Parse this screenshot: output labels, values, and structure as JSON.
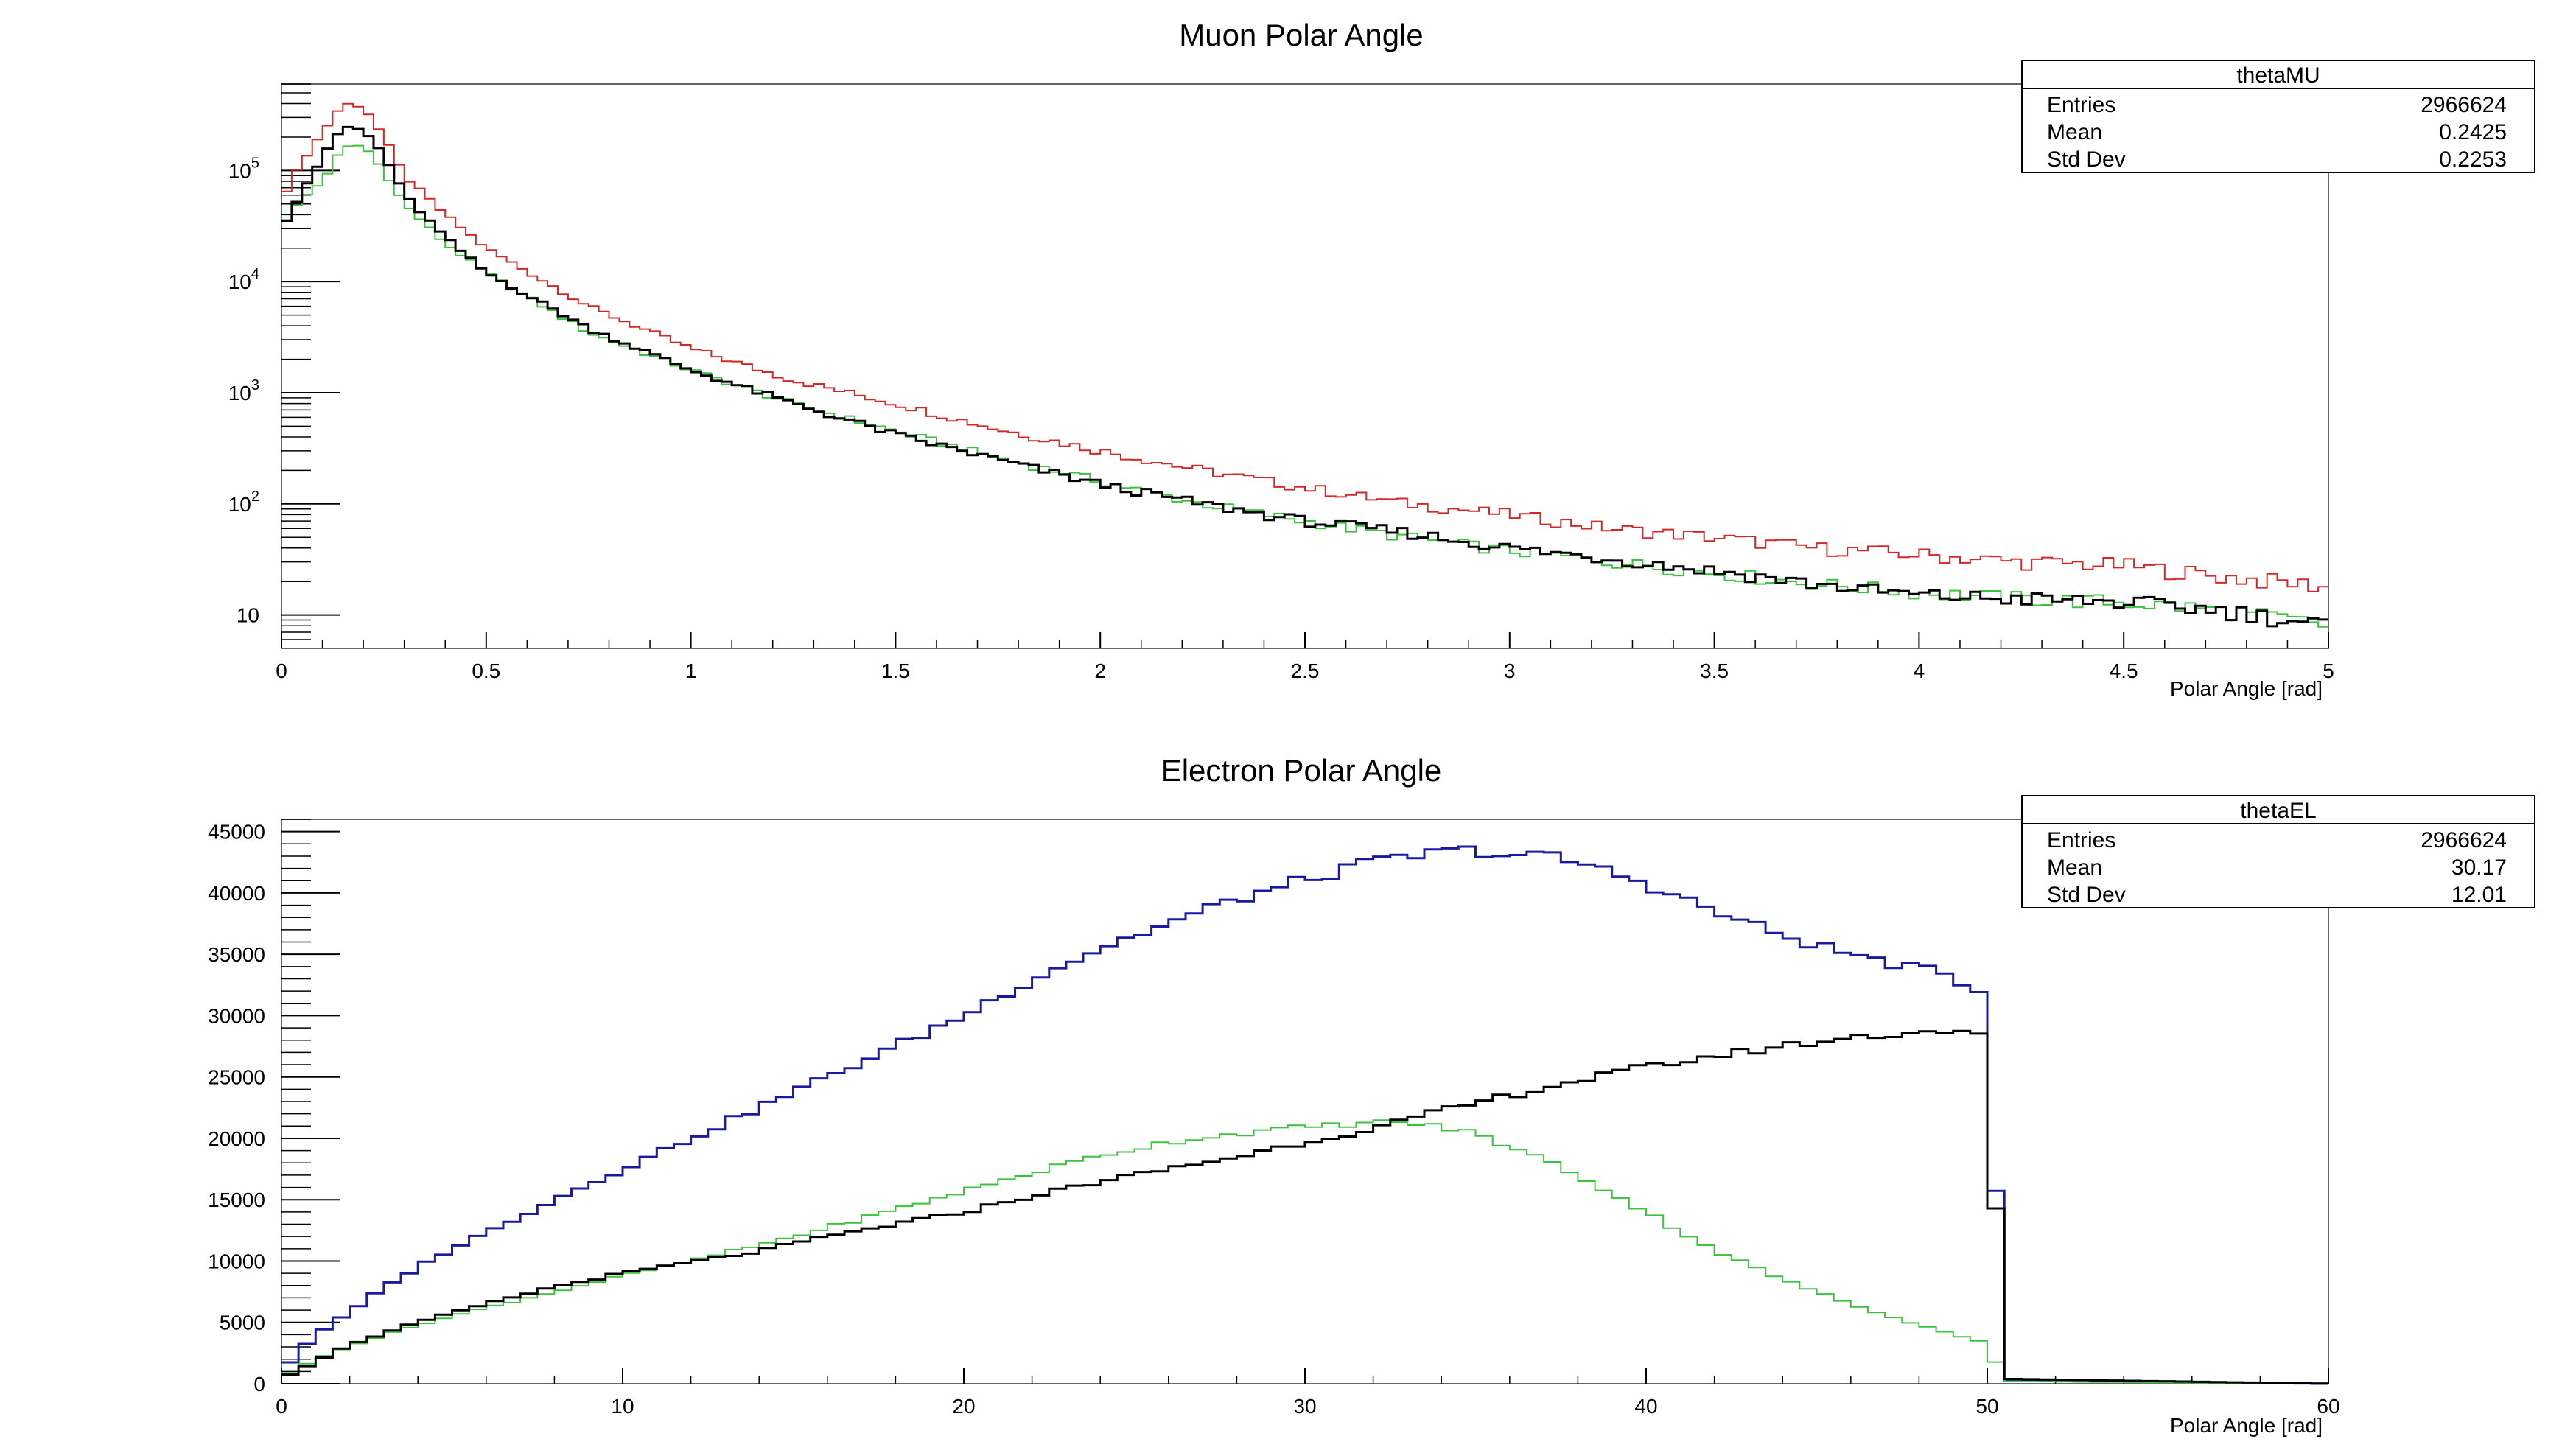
{
  "chart_data": [
    {
      "type": "histogram",
      "title": "Muon Polar Angle",
      "xlabel": "Polar Angle [rad]",
      "ylabel": "",
      "xlim": [
        0,
        5
      ],
      "ylim": [
        5,
        600000
      ],
      "yscale": "log",
      "xticks": [
        "0",
        "0.5",
        "1",
        "1.5",
        "2",
        "2.5",
        "3",
        "3.5",
        "4",
        "4.5",
        "5"
      ],
      "yticks": [
        {
          "base": "10",
          "exp": "5",
          "value": 100000
        },
        {
          "base": "10",
          "exp": "4",
          "value": 10000
        },
        {
          "base": "10",
          "exp": "3",
          "value": 1000
        },
        {
          "base": "10",
          "exp": "2",
          "value": 100
        },
        {
          "base": "10",
          "exp": "",
          "value": 10
        }
      ],
      "grid": false,
      "stats_box": {
        "name": "thetaMU",
        "rows": [
          {
            "label": "Entries",
            "value": "2966624"
          },
          {
            "label": "Mean",
            "value": "0.2425"
          },
          {
            "label": "Std Dev",
            "value": "0.2253"
          }
        ]
      },
      "bin_edges": [
        0,
        5
      ],
      "nbins": 200,
      "series": [
        {
          "color": "#d62728",
          "line_width": 2,
          "anchors": [
            [
              0.0,
              55000
            ],
            [
              0.05,
              120000
            ],
            [
              0.1,
              220000
            ],
            [
              0.15,
              400000
            ],
            [
              0.2,
              380000
            ],
            [
              0.25,
              200000
            ],
            [
              0.3,
              90000
            ],
            [
              0.4,
              40000
            ],
            [
              0.5,
              20000
            ],
            [
              0.75,
              6000
            ],
            [
              1.0,
              2500
            ],
            [
              1.25,
              1300
            ],
            [
              1.5,
              800
            ],
            [
              1.75,
              470
            ],
            [
              2.0,
              300
            ],
            [
              2.25,
              200
            ],
            [
              2.5,
              140
            ],
            [
              2.75,
              100
            ],
            [
              3.0,
              80
            ],
            [
              3.25,
              60
            ],
            [
              3.5,
              50
            ],
            [
              3.75,
              40
            ],
            [
              4.0,
              35
            ],
            [
              4.25,
              30
            ],
            [
              4.5,
              28
            ],
            [
              4.75,
              22
            ],
            [
              5.0,
              18
            ]
          ]
        },
        {
          "color": "#3cc33c",
          "line_width": 2,
          "anchors": [
            [
              0.0,
              32000
            ],
            [
              0.05,
              55000
            ],
            [
              0.1,
              80000
            ],
            [
              0.15,
              160000
            ],
            [
              0.2,
              170000
            ],
            [
              0.25,
              100000
            ],
            [
              0.3,
              50000
            ],
            [
              0.4,
              22000
            ],
            [
              0.5,
              12000
            ],
            [
              0.75,
              3500
            ],
            [
              1.0,
              1600
            ],
            [
              1.25,
              800
            ],
            [
              1.5,
              450
            ],
            [
              1.75,
              260
            ],
            [
              2.0,
              160
            ],
            [
              2.25,
              100
            ],
            [
              2.5,
              70
            ],
            [
              2.75,
              50
            ],
            [
              3.0,
              38
            ],
            [
              3.25,
              30
            ],
            [
              3.5,
              24
            ],
            [
              3.75,
              19
            ],
            [
              4.0,
              16
            ],
            [
              4.25,
              14
            ],
            [
              4.5,
              13
            ],
            [
              4.75,
              11
            ],
            [
              5.0,
              8
            ]
          ]
        },
        {
          "color": "#000000",
          "line_width": 3,
          "anchors": [
            [
              0.0,
              30000
            ],
            [
              0.05,
              65000
            ],
            [
              0.1,
              130000
            ],
            [
              0.15,
              250000
            ],
            [
              0.2,
              230000
            ],
            [
              0.25,
              140000
            ],
            [
              0.3,
              60000
            ],
            [
              0.4,
              25000
            ],
            [
              0.5,
              12000
            ],
            [
              0.75,
              3800
            ],
            [
              1.0,
              1600
            ],
            [
              1.25,
              800
            ],
            [
              1.5,
              420
            ],
            [
              1.75,
              250
            ],
            [
              2.0,
              150
            ],
            [
              2.25,
              100
            ],
            [
              2.5,
              70
            ],
            [
              2.75,
              55
            ],
            [
              3.0,
              40
            ],
            [
              3.25,
              32
            ],
            [
              3.5,
              25
            ],
            [
              3.75,
              19
            ],
            [
              4.0,
              15
            ],
            [
              4.25,
              14
            ],
            [
              4.5,
              13
            ],
            [
              4.75,
              11
            ],
            [
              5.0,
              8
            ]
          ]
        }
      ]
    },
    {
      "type": "histogram",
      "title": "Electron Polar Angle",
      "xlabel": "Polar Angle [rad]",
      "ylabel": "",
      "xlim": [
        0,
        60
      ],
      "ylim": [
        0,
        46000
      ],
      "yscale": "linear",
      "xticks": [
        "0",
        "10",
        "20",
        "30",
        "40",
        "50",
        "60"
      ],
      "yticks": [
        "0",
        "5000",
        "10000",
        "15000",
        "20000",
        "25000",
        "30000",
        "35000",
        "40000",
        "45000"
      ],
      "grid": false,
      "stats_box": {
        "name": "thetaEL",
        "rows": [
          {
            "label": "Entries",
            "value": "2966624"
          },
          {
            "label": "Mean",
            "value": "30.17"
          },
          {
            "label": "Std Dev",
            "value": "12.01"
          }
        ]
      },
      "bin_edges": [
        0,
        60
      ],
      "nbins": 120,
      "series": [
        {
          "color": "#1a1aa0",
          "line_width": 3,
          "anchors": [
            [
              0,
              1000
            ],
            [
              1,
              4000
            ],
            [
              2,
              5800
            ],
            [
              3,
              7800
            ],
            [
              4,
              9500
            ],
            [
              5,
              11000
            ],
            [
              6,
              12300
            ],
            [
              8,
              15000
            ],
            [
              10,
              17500
            ],
            [
              12,
              20000
            ],
            [
              14,
              22500
            ],
            [
              16,
              25000
            ],
            [
              18,
              27500
            ],
            [
              20,
              30000
            ],
            [
              22,
              33000
            ],
            [
              24,
              35500
            ],
            [
              26,
              37500
            ],
            [
              28,
              39500
            ],
            [
              30,
              41000
            ],
            [
              32,
              42500
            ],
            [
              34,
              43300
            ],
            [
              35,
              43500
            ],
            [
              36,
              43100
            ],
            [
              37,
              43000
            ],
            [
              38,
              42500
            ],
            [
              40,
              40800
            ],
            [
              42,
              38500
            ],
            [
              44,
              36500
            ],
            [
              46,
              35000
            ],
            [
              48,
              33800
            ],
            [
              49,
              33200
            ],
            [
              50,
              31500
            ],
            [
              50.5,
              300
            ],
            [
              60,
              0
            ]
          ]
        },
        {
          "color": "#3cc33c",
          "line_width": 2,
          "anchors": [
            [
              0,
              500
            ],
            [
              1,
              2000
            ],
            [
              2,
              3100
            ],
            [
              4,
              4800
            ],
            [
              6,
              6200
            ],
            [
              8,
              7500
            ],
            [
              10,
              8800
            ],
            [
              12,
              10000
            ],
            [
              14,
              11300
            ],
            [
              16,
              12700
            ],
            [
              18,
              14200
            ],
            [
              20,
              15700
            ],
            [
              22,
              17200
            ],
            [
              24,
              18600
            ],
            [
              26,
              19700
            ],
            [
              28,
              20400
            ],
            [
              30,
              20900
            ],
            [
              32,
              21300
            ],
            [
              33,
              21300
            ],
            [
              34,
              20900
            ],
            [
              35,
              20400
            ],
            [
              36,
              19300
            ],
            [
              37,
              18300
            ],
            [
              38,
              17000
            ],
            [
              40,
              14000
            ],
            [
              42,
              10900
            ],
            [
              44,
              8500
            ],
            [
              46,
              6500
            ],
            [
              48,
              4800
            ],
            [
              50,
              3300
            ],
            [
              50.5,
              200
            ],
            [
              60,
              0
            ]
          ]
        },
        {
          "color": "#000000",
          "line_width": 3,
          "anchors": [
            [
              0,
              400
            ],
            [
              1,
              1800
            ],
            [
              2,
              3200
            ],
            [
              4,
              5000
            ],
            [
              6,
              6500
            ],
            [
              8,
              7900
            ],
            [
              10,
              9000
            ],
            [
              12,
              9900
            ],
            [
              14,
              10800
            ],
            [
              16,
              12000
            ],
            [
              18,
              13000
            ],
            [
              20,
              14000
            ],
            [
              22,
              15300
            ],
            [
              24,
              16500
            ],
            [
              26,
              17500
            ],
            [
              28,
              18500
            ],
            [
              30,
              19700
            ],
            [
              32,
              20800
            ],
            [
              34,
              22200
            ],
            [
              36,
              23500
            ],
            [
              38,
              24700
            ],
            [
              40,
              25800
            ],
            [
              42,
              26700
            ],
            [
              44,
              27500
            ],
            [
              46,
              28200
            ],
            [
              48,
              28700
            ],
            [
              49,
              28800
            ],
            [
              50,
              28100
            ],
            [
              50.5,
              400
            ],
            [
              60,
              0
            ]
          ]
        }
      ]
    }
  ]
}
